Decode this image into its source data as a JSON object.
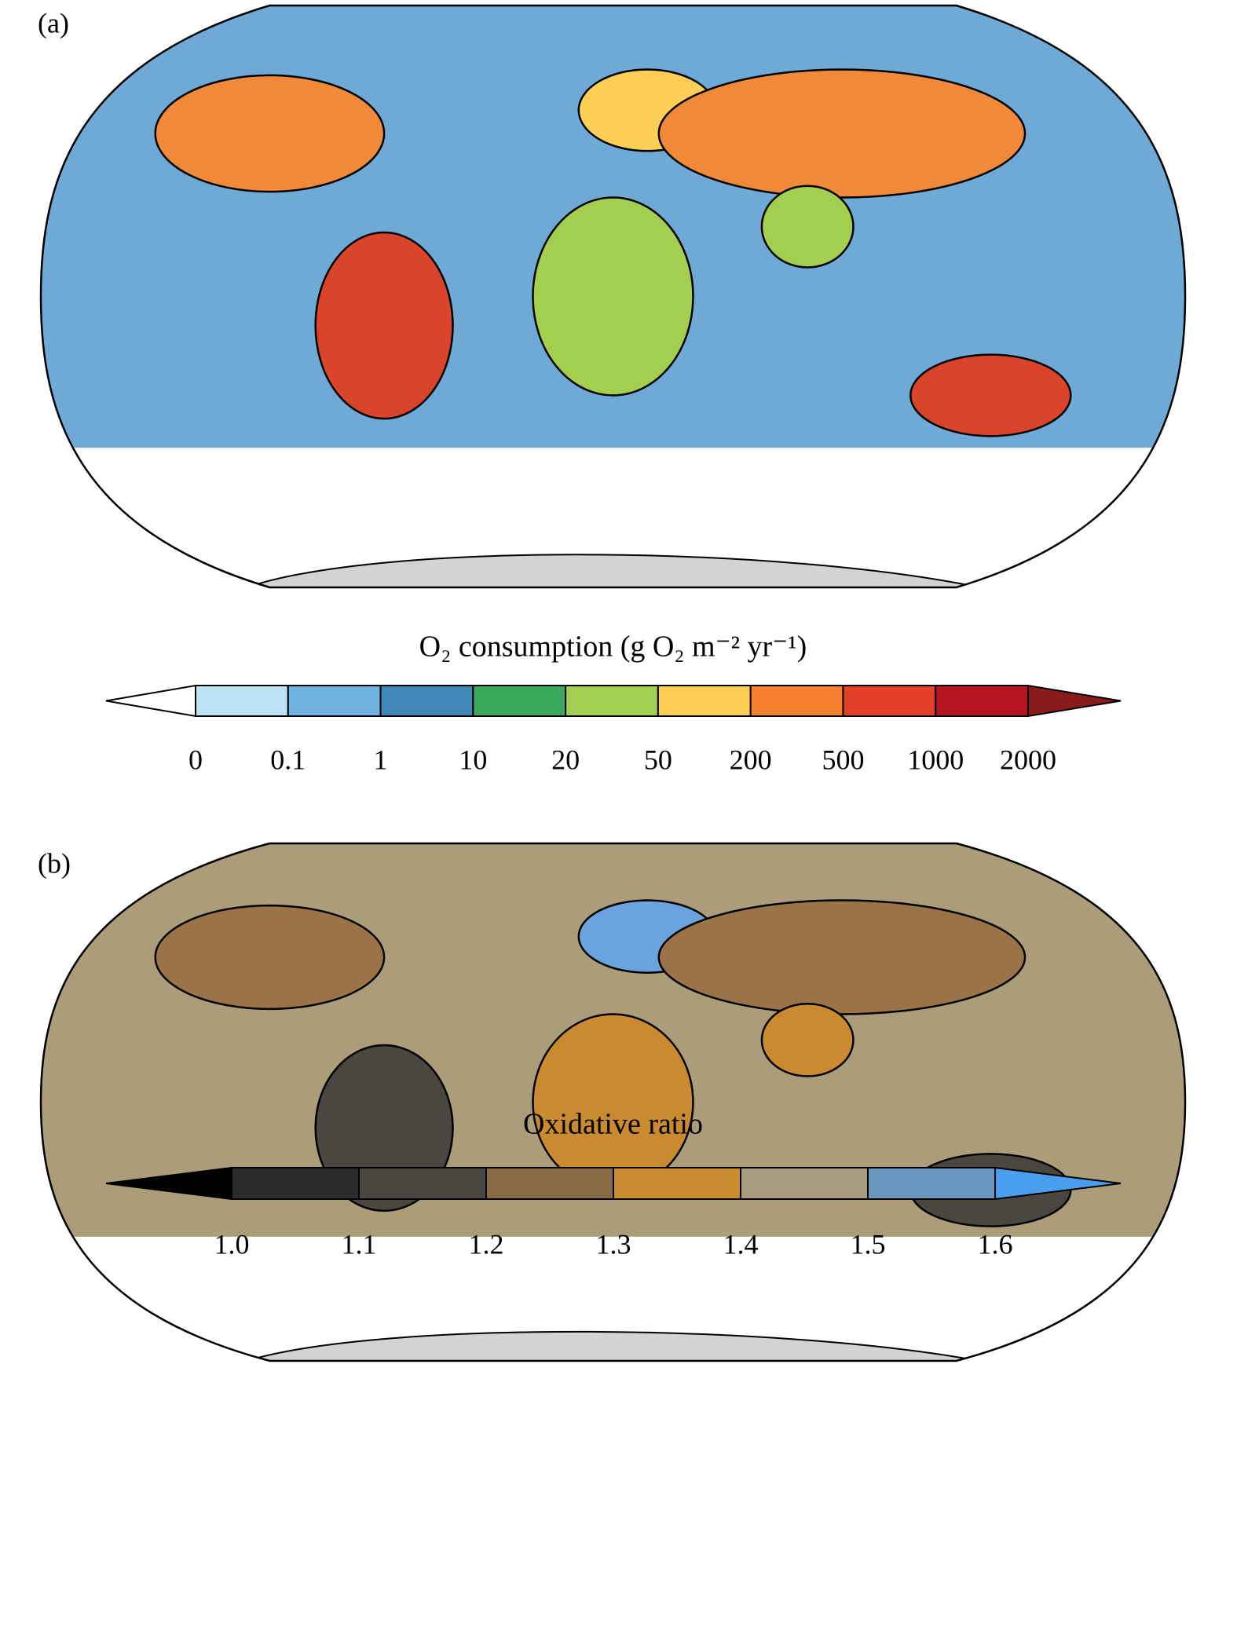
{
  "panels": [
    {
      "label": "(a)",
      "colorbar": {
        "title": "O₂ consumption (g O₂ m⁻² yr⁻¹)",
        "ticks": [
          0,
          0.1,
          1,
          10,
          20,
          50,
          200,
          500,
          1000,
          2000
        ],
        "colors": [
          "#bde3f5",
          "#6fb1e0",
          "#3f88b8",
          "#3aa85a",
          "#a3cf50",
          "#fdd055",
          "#f77f30",
          "#e24127",
          "#b5151f"
        ],
        "extend_min_color": "#ffffff",
        "extend_max_color": "#8b1a1a"
      }
    },
    {
      "label": "(b)",
      "colorbar": {
        "title": "Oxidative ratio",
        "ticks": [
          {
            "value": 1,
            "label": "1.0"
          },
          1.1,
          1.2,
          1.3,
          1.4,
          1.5,
          1.6
        ],
        "colors": [
          "#2b2b2b",
          "#4a4640",
          "#8a6a45",
          "#c98a30",
          "#a89b7e",
          "#6a97c0"
        ],
        "extend_min_color": "#000000",
        "extend_max_color": "#4a9ef0"
      }
    }
  ]
}
